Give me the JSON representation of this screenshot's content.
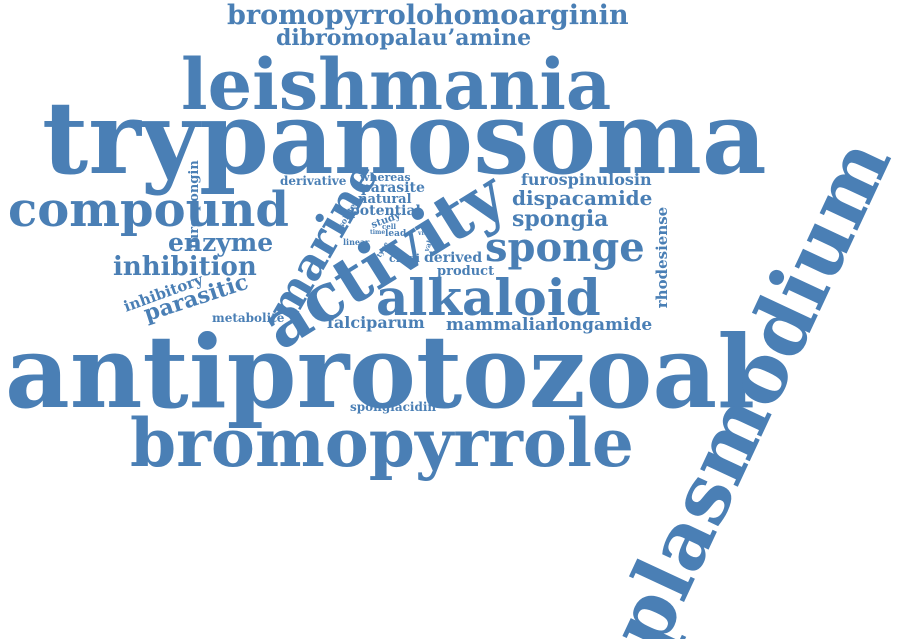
{
  "color": "#4a7fb5",
  "words": [
    "bromopyrrolohomoarginin",
    "dibromopalau’amine",
    "leishmania",
    "trypanosoma",
    "compound",
    "furospongin",
    "derivative",
    "whereas",
    "parasite",
    "natural",
    "potential",
    "study",
    "lead",
    "cell",
    "linear",
    "type",
    "time",
    "isolate",
    "cruzi",
    "vitro",
    "value",
    "furospinulosin",
    "dispacamide",
    "spongia",
    "rhodesiense",
    "enzyme",
    "marine",
    "activity",
    "sponge",
    "inhibition",
    "inhibitory",
    "parasitic",
    "alkaloid",
    "derived",
    "product",
    "metabolite",
    "falciparum",
    "mammalian",
    "longamide",
    "antiprotozoal",
    "plasmodium",
    "spongiacidin",
    "bromopyrrole"
  ]
}
